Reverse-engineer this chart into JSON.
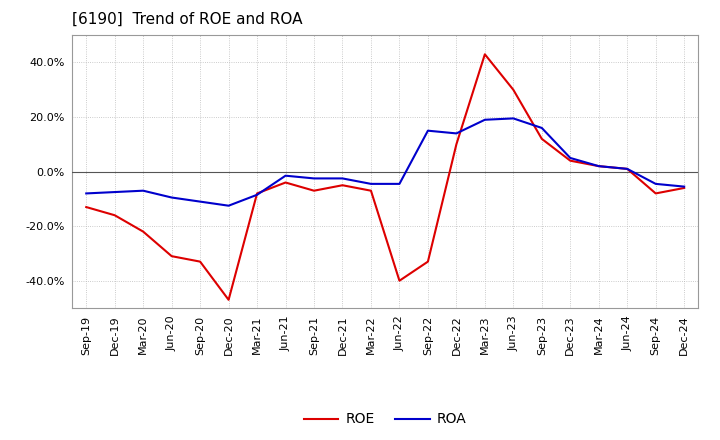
{
  "title": "[6190]  Trend of ROE and ROA",
  "labels": [
    "Sep-19",
    "Dec-19",
    "Mar-20",
    "Jun-20",
    "Sep-20",
    "Dec-20",
    "Mar-21",
    "Jun-21",
    "Sep-21",
    "Dec-21",
    "Mar-22",
    "Jun-22",
    "Sep-22",
    "Dec-22",
    "Mar-23",
    "Jun-23",
    "Sep-23",
    "Dec-23",
    "Mar-24",
    "Jun-24",
    "Sep-24",
    "Dec-24"
  ],
  "ROE": [
    -13.0,
    -16.0,
    -22.0,
    -31.0,
    -33.0,
    -47.0,
    -8.0,
    -4.0,
    -7.0,
    -5.0,
    -7.0,
    -40.0,
    -33.0,
    10.0,
    43.0,
    30.0,
    12.0,
    4.0,
    2.0,
    1.0,
    -8.0,
    -6.0
  ],
  "ROA": [
    -8.0,
    -7.5,
    -7.0,
    -9.5,
    -11.0,
    -12.5,
    -8.5,
    -1.5,
    -2.5,
    -2.5,
    -4.5,
    -4.5,
    15.0,
    14.0,
    19.0,
    19.5,
    16.0,
    5.0,
    2.0,
    1.0,
    -4.5,
    -5.5
  ],
  "roe_color": "#dd0000",
  "roa_color": "#0000cc",
  "background_color": "#ffffff",
  "grid_color": "#bbbbbb",
  "ylim": [
    -50,
    50
  ],
  "yticks": [
    -40.0,
    -20.0,
    0.0,
    20.0,
    40.0
  ],
  "title_fontsize": 11,
  "legend_fontsize": 10,
  "tick_fontsize": 8,
  "linewidth": 1.5
}
